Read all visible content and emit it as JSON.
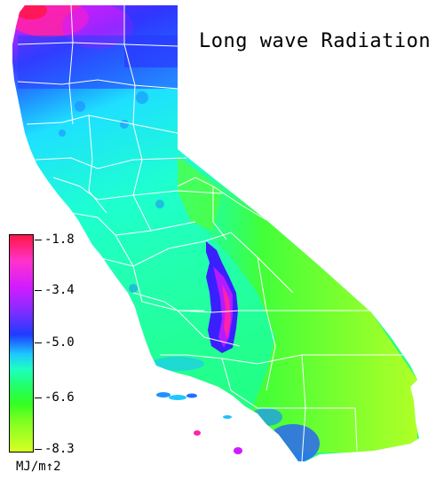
{
  "title": "Long wave Radiation",
  "legend": {
    "ticks": [
      "-1.8",
      "-3.4",
      "-5.0",
      "-6.6",
      "-8.3"
    ],
    "unit": "MJ/m↑2",
    "max": -1.8,
    "min": -8.3
  },
  "colors": {
    "high": "#ff1744",
    "magenta": "#ff33cc",
    "purple": "#8a2bff",
    "blue": "#1e3cff",
    "cyan": "#1ec8ff",
    "aqua": "#1effc0",
    "green": "#22ff66",
    "lime": "#7fff22",
    "low": "#d7ff22",
    "county_lines": "#ffffff",
    "background": "#ffffff"
  }
}
